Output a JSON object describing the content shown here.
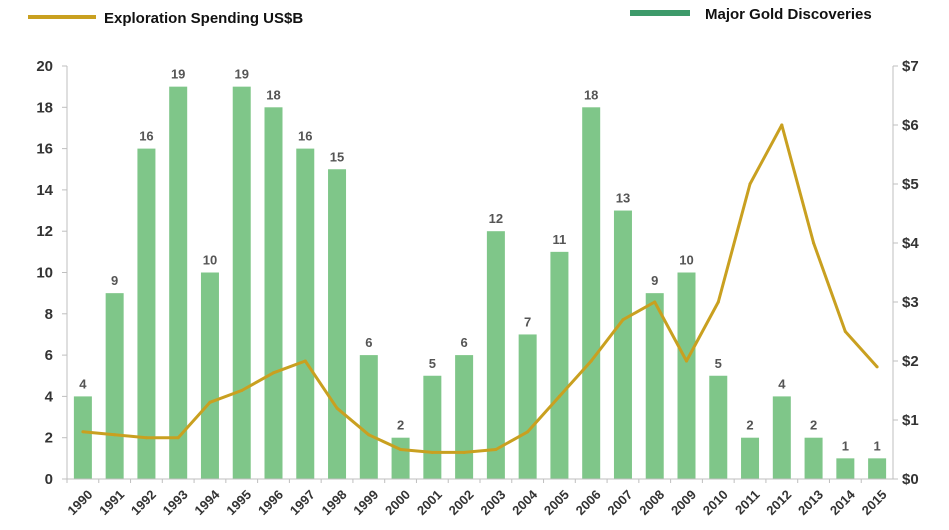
{
  "chart_data": {
    "type": "bar+line",
    "categories": [
      "1990",
      "1991",
      "1992",
      "1993",
      "1994",
      "1995",
      "1996",
      "1997",
      "1998",
      "1999",
      "2000",
      "2001",
      "2002",
      "2003",
      "2004",
      "2005",
      "2006",
      "2007",
      "2008",
      "2009",
      "2010",
      "2011",
      "2012",
      "2013",
      "2014",
      "2015"
    ],
    "series": [
      {
        "name": "Major Gold Discoveries",
        "type": "bar",
        "axis": "left",
        "color": "#7fc689",
        "legend_color": "#3d9a6a",
        "values": [
          4,
          9,
          16,
          19,
          10,
          19,
          18,
          16,
          15,
          6,
          2,
          5,
          6,
          12,
          7,
          11,
          18,
          13,
          9,
          10,
          5,
          2,
          4,
          2,
          1,
          1
        ]
      },
      {
        "name": "Exploration Spending US$B",
        "type": "line",
        "axis": "right",
        "color": "#c9a020",
        "values": [
          0.8,
          0.75,
          0.7,
          0.7,
          1.3,
          1.5,
          1.8,
          2.0,
          1.2,
          0.75,
          0.5,
          0.45,
          0.45,
          0.5,
          0.8,
          1.4,
          2.0,
          2.7,
          3.0,
          2.0,
          3.0,
          5.0,
          6.0,
          4.0,
          2.5,
          1.9
        ]
      }
    ],
    "left_axis": {
      "ticks": [
        "0",
        "2",
        "4",
        "6",
        "8",
        "10",
        "12",
        "14",
        "16",
        "18",
        "20"
      ],
      "range": [
        0,
        20
      ]
    },
    "right_axis": {
      "ticks": [
        "$0",
        "$1",
        "$2",
        "$3",
        "$4",
        "$5",
        "$6",
        "$7"
      ],
      "range": [
        0,
        7
      ]
    },
    "legend": [
      {
        "label": "Exploration Spending US$B",
        "position": "top-left",
        "color": "#c9a020"
      },
      {
        "label": "Major Gold Discoveries",
        "position": "top-right",
        "color": "#3d9a6a"
      }
    ],
    "grid": false
  }
}
